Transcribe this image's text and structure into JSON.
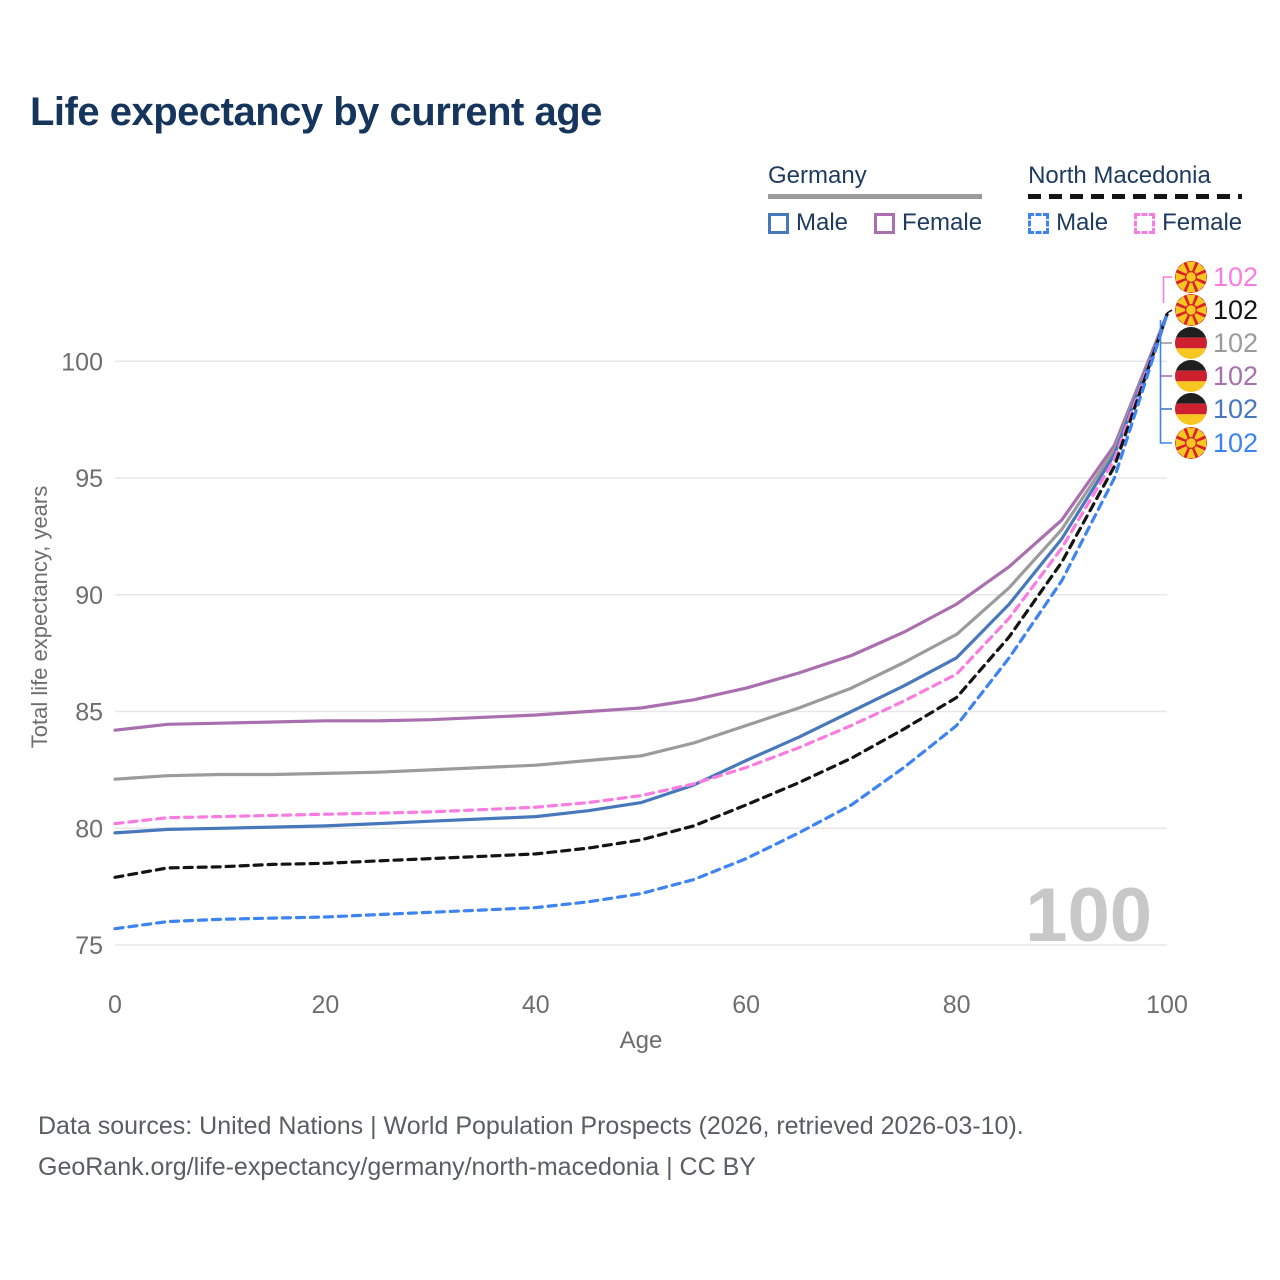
{
  "title": "Life expectancy by current age",
  "legend": {
    "groups": [
      {
        "label": "Germany",
        "color": "#9b9b9b",
        "style": "solid"
      },
      {
        "label": "North Macedonia",
        "color": "#141414",
        "style": "dashed"
      }
    ],
    "items": [
      {
        "label": "Male",
        "color": "#4878bc",
        "dash": false
      },
      {
        "label": "Female",
        "color": "#a96fae",
        "dash": false
      },
      {
        "label": "Male",
        "color": "#3d83f2",
        "dash": true
      },
      {
        "label": "Female",
        "color": "#fa7ce0",
        "dash": true
      }
    ]
  },
  "chart_data": {
    "type": "line",
    "title": "Life expectancy by current age",
    "xlabel": "Age",
    "ylabel": "Total life expectancy, years",
    "xlim": [
      0,
      100
    ],
    "ylim": [
      75,
      102
    ],
    "x_ticks": [
      0,
      20,
      40,
      60,
      80,
      100
    ],
    "y_ticks": [
      75,
      80,
      85,
      90,
      95,
      100
    ],
    "grid": true,
    "legend_position": "top-right",
    "x": [
      0,
      5,
      10,
      15,
      20,
      25,
      30,
      35,
      40,
      45,
      50,
      55,
      60,
      65,
      70,
      75,
      80,
      85,
      90,
      95,
      100
    ],
    "series": [
      {
        "name": "Germany Female",
        "id": "germany-female",
        "color": "#a96fae",
        "dash": false,
        "values": [
          84.2,
          84.45,
          84.5,
          84.55,
          84.6,
          84.6,
          84.65,
          84.75,
          84.85,
          85.0,
          85.15,
          85.5,
          86.0,
          86.65,
          87.4,
          88.4,
          89.6,
          91.2,
          93.2,
          96.4,
          102
        ]
      },
      {
        "name": "Germany (all)",
        "id": "germany-all",
        "color": "#9b9b9b",
        "dash": false,
        "values": [
          82.1,
          82.25,
          82.3,
          82.3,
          82.35,
          82.4,
          82.5,
          82.6,
          82.7,
          82.9,
          83.1,
          83.65,
          84.4,
          85.15,
          86.0,
          87.1,
          88.3,
          90.3,
          92.8,
          96.2,
          102
        ]
      },
      {
        "name": "Germany Male",
        "id": "germany-male",
        "color": "#4878bc",
        "dash": false,
        "values": [
          79.8,
          79.95,
          80.0,
          80.05,
          80.1,
          80.2,
          80.3,
          80.4,
          80.5,
          80.75,
          81.1,
          81.85,
          82.9,
          83.9,
          85.0,
          86.1,
          87.3,
          89.6,
          92.4,
          96.0,
          102
        ]
      },
      {
        "name": "North Macedonia Female",
        "id": "north-macedonia-female",
        "color": "#fa7ce0",
        "dash": true,
        "values": [
          80.2,
          80.45,
          80.5,
          80.55,
          80.6,
          80.65,
          80.7,
          80.8,
          80.9,
          81.1,
          81.4,
          81.9,
          82.6,
          83.45,
          84.4,
          85.45,
          86.6,
          89.0,
          92.0,
          95.8,
          102
        ]
      },
      {
        "name": "North Macedonia (all)",
        "id": "north-macedonia-all",
        "color": "#141414",
        "dash": true,
        "values": [
          77.9,
          78.3,
          78.35,
          78.45,
          78.5,
          78.6,
          78.7,
          78.8,
          78.9,
          79.15,
          79.5,
          80.1,
          81.0,
          81.95,
          83.0,
          84.25,
          85.6,
          88.2,
          91.4,
          95.5,
          102
        ]
      },
      {
        "name": "North Macedonia Male",
        "id": "north-macedonia-male",
        "color": "#3d83f2",
        "dash": true,
        "values": [
          75.7,
          76.0,
          76.1,
          76.15,
          76.2,
          76.3,
          76.4,
          76.5,
          76.6,
          76.85,
          77.2,
          77.8,
          78.7,
          79.8,
          81.0,
          82.6,
          84.4,
          87.3,
          90.6,
          95.0,
          102
        ]
      }
    ],
    "end_labels": [
      {
        "value": "102",
        "flag": "north-macedonia",
        "color": "#fa7ce0",
        "series": "north-macedonia-female"
      },
      {
        "value": "102",
        "flag": "north-macedonia",
        "color": "#141414",
        "series": "north-macedonia-all"
      },
      {
        "value": "102",
        "flag": "germany",
        "color": "#9b9b9b",
        "series": "germany-all"
      },
      {
        "value": "102",
        "flag": "germany",
        "color": "#a96fae",
        "series": "germany-female"
      },
      {
        "value": "102",
        "flag": "germany",
        "color": "#4878bc",
        "series": "germany-male"
      },
      {
        "value": "102",
        "flag": "north-macedonia",
        "color": "#3d83f2",
        "series": "north-macedonia-male"
      }
    ],
    "age_counter_watermark": "100"
  },
  "footer": {
    "line1": "Data sources: United Nations | World Population Prospects (2026, retrieved 2026-03-10).",
    "line2": "GeoRank.org/life-expectancy/germany/north-macedonia | CC BY"
  }
}
